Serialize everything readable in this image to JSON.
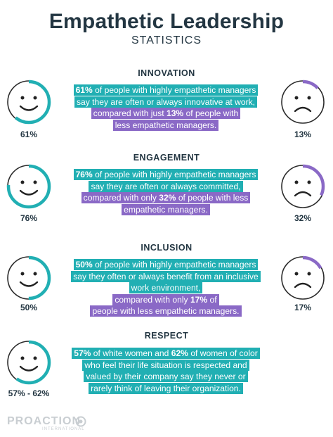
{
  "header": {
    "title": "Empathetic Leadership",
    "subtitle": "STATISTICS"
  },
  "colors": {
    "teal": "#21afb3",
    "purple": "#8a69c6",
    "ring_bg": "#dde1e4",
    "text_dark": "#233642"
  },
  "sections": [
    {
      "title": "INNOVATION",
      "left_pct": "61%",
      "left_fraction": 0.61,
      "right_pct": "13%",
      "right_fraction": 0.13,
      "teal_lines": [
        [
          {
            "b": "61%"
          },
          {
            "t": " of people with highly empathetic managers"
          }
        ],
        [
          {
            "t": "say they are often or always innovative at work,"
          }
        ]
      ],
      "purple_lines": [
        [
          {
            "t": "compared with just "
          },
          {
            "b": "13%"
          },
          {
            "t": " of people with"
          }
        ],
        [
          {
            "t": "less empathetic managers."
          }
        ]
      ]
    },
    {
      "title": "ENGAGEMENT",
      "left_pct": "76%",
      "left_fraction": 0.76,
      "right_pct": "32%",
      "right_fraction": 0.32,
      "teal_lines": [
        [
          {
            "b": "76%"
          },
          {
            "t": " of people with highly empathetic managers"
          }
        ],
        [
          {
            "t": "say they are often or always committed,"
          }
        ]
      ],
      "purple_lines": [
        [
          {
            "t": "compared with only "
          },
          {
            "b": "32%"
          },
          {
            "t": " of people with less"
          }
        ],
        [
          {
            "t": "empathetic managers."
          }
        ]
      ]
    },
    {
      "title": "INCLUSION",
      "left_pct": "50%",
      "left_fraction": 0.5,
      "right_pct": "17%",
      "right_fraction": 0.17,
      "teal_lines": [
        [
          {
            "b": "50%"
          },
          {
            "t": " of people with highly empathetic managers"
          }
        ],
        [
          {
            "t": "say they often or always benefit from an inclusive"
          }
        ],
        [
          {
            "t": "work environment,"
          }
        ]
      ],
      "purple_lines": [
        [
          {
            "t": "compared with only "
          },
          {
            "b": "17%"
          },
          {
            "t": " of"
          }
        ],
        [
          {
            "t": "people with less empathetic managers."
          }
        ]
      ]
    },
    {
      "title": "RESPECT",
      "left_pct": "57% - 62%",
      "left_fraction": 0.6,
      "teal_lines": [
        [
          {
            "b": "57%"
          },
          {
            "t": " of white women and "
          },
          {
            "b": "62%"
          },
          {
            "t": " of women of color"
          }
        ],
        [
          {
            "t": "who feel their life situation is respected and"
          }
        ],
        [
          {
            "t": "valued by their company say they never or"
          }
        ],
        [
          {
            "t": "rarely think of leaving their organization."
          }
        ]
      ],
      "purple_lines": []
    }
  ],
  "footer": {
    "logo": "PROACTION",
    "logo_sub": "INTERNATIONAL"
  }
}
